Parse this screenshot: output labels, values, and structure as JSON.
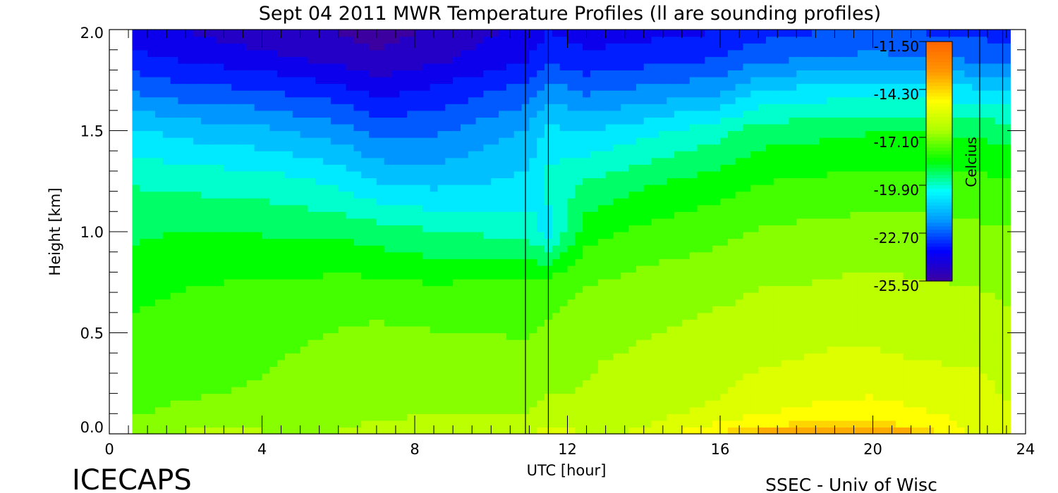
{
  "chart_data": {
    "type": "heatmap",
    "title": "Sept 04 2011 MWR Temperature Profiles (ll are sounding profiles)",
    "xlabel": "UTC [hour]",
    "ylabel": "Height [km]",
    "xlim": [
      0,
      24
    ],
    "ylim": [
      0,
      2
    ],
    "x_ticks": [
      "0",
      "4",
      "8",
      "12",
      "16",
      "20",
      "24"
    ],
    "y_ticks": [
      "0.0",
      "0.5",
      "1.0",
      "1.5",
      "2.0"
    ],
    "data_x_range": [
      0.6,
      23.6
    ],
    "colorbar": {
      "label": "Celcius",
      "range": [
        -25.5,
        -11.5
      ],
      "ticks": [
        "-11.50",
        "-14.30",
        "-17.10",
        "-19.90",
        "-22.70",
        "-25.50"
      ]
    },
    "sounding_profile_times": [
      10.9,
      11.5,
      22.8,
      23.4
    ],
    "height_km": [
      0.0,
      0.02,
      0.05,
      0.1,
      0.2,
      0.35,
      0.5,
      0.75,
      1.0,
      1.25,
      1.5,
      1.7,
      1.85,
      2.0
    ],
    "utc_hour": [
      0.6,
      2,
      4,
      6,
      7,
      8.5,
      10.9,
      11.5,
      12.5,
      14,
      16,
      17,
      18,
      19,
      20,
      21,
      22.8,
      23.6
    ],
    "temperature_celsius": [
      [
        -16.8,
        -16.5,
        -16.5,
        -16.8,
        -16.0,
        -16.0,
        -16.5,
        -15.5,
        -16.0,
        -16.0,
        -14.5,
        -13.5,
        -13.0,
        -13.2,
        -12.8,
        -13.5,
        -16.0,
        -15.5
      ],
      [
        -17.0,
        -16.8,
        -16.8,
        -16.8,
        -16.3,
        -16.2,
        -16.2,
        -15.8,
        -16.2,
        -16.0,
        -14.8,
        -14.0,
        -13.8,
        -13.8,
        -13.5,
        -14.0,
        -15.8,
        -15.5
      ],
      [
        -17.3,
        -17.1,
        -17.0,
        -17.0,
        -16.6,
        -16.5,
        -16.5,
        -16.2,
        -16.3,
        -16.1,
        -15.3,
        -14.8,
        -14.6,
        -14.6,
        -14.4,
        -14.8,
        -15.6,
        -15.8
      ],
      [
        -17.5,
        -17.3,
        -17.2,
        -17.1,
        -16.9,
        -16.8,
        -16.8,
        -16.5,
        -16.5,
        -16.3,
        -15.8,
        -15.4,
        -15.2,
        -15.1,
        -15.0,
        -15.2,
        -15.6,
        -16.0
      ],
      [
        -17.7,
        -17.5,
        -17.4,
        -17.2,
        -17.0,
        -17.0,
        -17.0,
        -16.8,
        -16.7,
        -16.5,
        -16.1,
        -15.8,
        -15.6,
        -15.5,
        -15.4,
        -15.6,
        -15.8,
        -16.2
      ],
      [
        -17.8,
        -17.6,
        -17.5,
        -17.2,
        -17.0,
        -17.1,
        -17.2,
        -17.0,
        -16.8,
        -16.6,
        -16.3,
        -16.1,
        -16.0,
        -15.9,
        -15.9,
        -16.0,
        -16.1,
        -16.4
      ],
      [
        -18.0,
        -17.8,
        -17.7,
        -17.4,
        -17.3,
        -17.4,
        -17.5,
        -17.3,
        -17.0,
        -16.8,
        -16.5,
        -16.4,
        -16.3,
        -16.2,
        -16.2,
        -16.3,
        -16.4,
        -16.6
      ],
      [
        -18.4,
        -18.2,
        -18.1,
        -18.0,
        -18.0,
        -18.2,
        -18.0,
        -17.9,
        -17.5,
        -17.2,
        -17.0,
        -16.8,
        -16.8,
        -16.7,
        -16.6,
        -16.7,
        -16.8,
        -16.9
      ],
      [
        -19.0,
        -18.8,
        -18.9,
        -19.0,
        -19.2,
        -19.5,
        -19.8,
        -20.5,
        -18.4,
        -18.0,
        -17.6,
        -17.4,
        -17.3,
        -17.2,
        -17.2,
        -17.2,
        -17.3,
        -17.4
      ],
      [
        -19.6,
        -19.8,
        -19.9,
        -20.4,
        -21.0,
        -21.2,
        -20.8,
        -20.0,
        -19.5,
        -19.0,
        -18.5,
        -18.2,
        -18.1,
        -18.0,
        -17.9,
        -17.9,
        -18.0,
        -18.1
      ],
      [
        -20.8,
        -21.2,
        -21.5,
        -22.0,
        -22.6,
        -22.5,
        -21.6,
        -20.8,
        -21.0,
        -20.5,
        -19.8,
        -19.2,
        -19.1,
        -19.0,
        -18.9,
        -18.9,
        -19.0,
        -19.2
      ],
      [
        -22.4,
        -22.8,
        -23.0,
        -23.5,
        -24.0,
        -23.6,
        -22.8,
        -22.0,
        -22.5,
        -22.2,
        -21.8,
        -21.0,
        -20.8,
        -20.6,
        -20.5,
        -20.6,
        -20.8,
        -21.0
      ],
      [
        -23.5,
        -23.8,
        -24.2,
        -24.6,
        -25.0,
        -24.6,
        -23.8,
        -23.2,
        -23.5,
        -23.3,
        -23.0,
        -22.5,
        -22.3,
        -22.2,
        -22.1,
        -22.2,
        -22.4,
        -22.6
      ],
      [
        -24.2,
        -24.5,
        -25.0,
        -25.2,
        -25.5,
        -25.0,
        -24.3,
        -23.8,
        -24.2,
        -24.0,
        -23.8,
        -23.4,
        -23.2,
        -23.1,
        -23.0,
        -23.1,
        -23.3,
        -23.5
      ]
    ],
    "grid": false,
    "legend": "colorbar right, inside plot"
  },
  "footer": {
    "brand": "ICECAPS",
    "credit": "SSEC - Univ of Wisc"
  },
  "colors": {
    "colormap": [
      "#3c00a0",
      "#0000ff",
      "#0096ff",
      "#00ffff",
      "#00ff00",
      "#aaff00",
      "#ffff00",
      "#ff9600",
      "#ff6400"
    ]
  }
}
